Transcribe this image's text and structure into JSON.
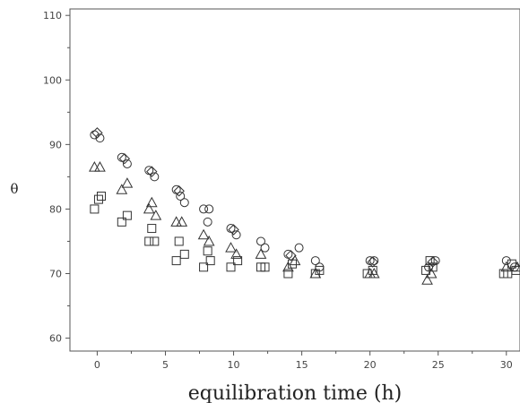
{
  "chart_data": {
    "type": "scatter",
    "title": "",
    "xlabel": "equilibration time (h)",
    "ylabel": "θ",
    "xlim": [
      -2,
      31
    ],
    "ylim": [
      58,
      111
    ],
    "x_ticks": [
      0,
      5,
      10,
      15,
      20,
      25,
      30
    ],
    "y_ticks": [
      60,
      70,
      80,
      90,
      100,
      110
    ],
    "grid": false,
    "legend": "none",
    "series": [
      {
        "marker": "circle",
        "points": [
          [
            -0.2,
            91.5
          ],
          [
            0.2,
            91
          ],
          [
            1.8,
            88
          ],
          [
            2.2,
            87
          ],
          [
            3.8,
            86
          ],
          [
            4.2,
            85
          ],
          [
            5.8,
            83
          ],
          [
            6.1,
            82
          ],
          [
            6.4,
            81
          ],
          [
            7.8,
            80
          ],
          [
            8.2,
            80
          ],
          [
            8.1,
            78
          ],
          [
            9.8,
            77
          ],
          [
            10.2,
            76
          ],
          [
            12,
            75
          ],
          [
            12.3,
            74
          ],
          [
            14,
            73
          ],
          [
            14.8,
            74
          ],
          [
            16,
            72
          ],
          [
            16.3,
            71
          ],
          [
            20,
            72
          ],
          [
            20.3,
            72
          ],
          [
            24.3,
            71
          ],
          [
            24.8,
            72
          ],
          [
            30,
            72
          ],
          [
            30.6,
            71
          ]
        ]
      },
      {
        "marker": "diamond",
        "points": [
          [
            0,
            91.8
          ],
          [
            2,
            87.8
          ],
          [
            4,
            85.8
          ],
          [
            6,
            82.8
          ],
          [
            10,
            76.8
          ],
          [
            14.2,
            72.8
          ],
          [
            20.2,
            71.8
          ],
          [
            24.6,
            71.8
          ]
        ]
      },
      {
        "marker": "triangle",
        "points": [
          [
            -0.2,
            86.5
          ],
          [
            0.2,
            86.5
          ],
          [
            1.8,
            83
          ],
          [
            2.2,
            84
          ],
          [
            3.8,
            80
          ],
          [
            4,
            81
          ],
          [
            4.3,
            79
          ],
          [
            5.8,
            78
          ],
          [
            6.2,
            78
          ],
          [
            7.8,
            76
          ],
          [
            8.2,
            75
          ],
          [
            9.8,
            74
          ],
          [
            10.2,
            73
          ],
          [
            12,
            73
          ],
          [
            14,
            71
          ],
          [
            14.5,
            72
          ],
          [
            16,
            70
          ],
          [
            20,
            70
          ],
          [
            20.3,
            70
          ],
          [
            24.2,
            69
          ],
          [
            24.5,
            70
          ],
          [
            30,
            71
          ],
          [
            30.8,
            71
          ]
        ]
      },
      {
        "marker": "square",
        "points": [
          [
            -0.2,
            80
          ],
          [
            0.1,
            81.5
          ],
          [
            0.3,
            82
          ],
          [
            1.8,
            78
          ],
          [
            2.2,
            79
          ],
          [
            3.8,
            75
          ],
          [
            4.2,
            75
          ],
          [
            4,
            77
          ],
          [
            5.8,
            72
          ],
          [
            6,
            75
          ],
          [
            6.4,
            73
          ],
          [
            7.8,
            71
          ],
          [
            8.3,
            72
          ],
          [
            8.1,
            73.5
          ],
          [
            9.8,
            71
          ],
          [
            10.3,
            72
          ],
          [
            12,
            71
          ],
          [
            12.3,
            71
          ],
          [
            14,
            70
          ],
          [
            14.3,
            71.5
          ],
          [
            16,
            70
          ],
          [
            16.3,
            70.5
          ],
          [
            19.8,
            70
          ],
          [
            20.2,
            70.5
          ],
          [
            24.1,
            70.5
          ],
          [
            24.4,
            72
          ],
          [
            24.6,
            71
          ],
          [
            29.8,
            70
          ],
          [
            30.1,
            70
          ],
          [
            30.4,
            71.5
          ],
          [
            30.7,
            70.5
          ]
        ]
      }
    ]
  }
}
